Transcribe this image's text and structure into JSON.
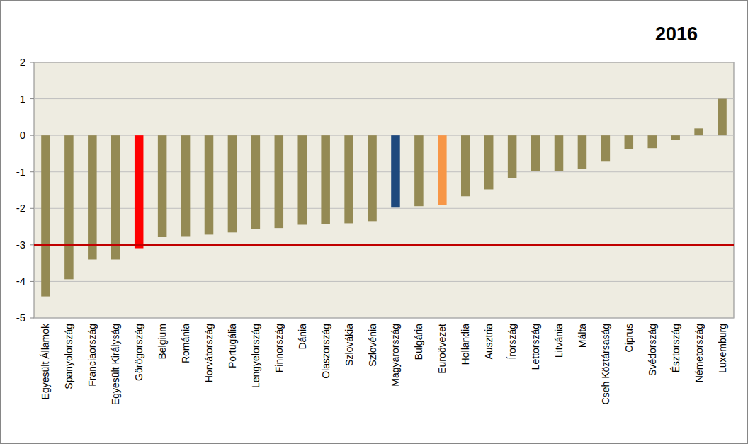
{
  "chart_data": {
    "type": "bar",
    "title": "2016",
    "categories": [
      "Egyesült Államok",
      "Spanyolország",
      "Franciaország",
      "Egyesült Királyság",
      "Görögország",
      "Belgium",
      "Románia",
      "Horvátország",
      "Portugália",
      "Lengyelország",
      "Finnország",
      "Dánia",
      "Olaszország",
      "Szlovákia",
      "Szlovénia",
      "Magyarország",
      "Bulgária",
      "Euroövezet",
      "Hollandia",
      "Ausztria",
      "Írország",
      "Lettország",
      "Litvánia",
      "Málta",
      "Cseh Köztársaság",
      "Ciprus",
      "Svédország",
      "Észtország",
      "Németország",
      "Luxemburg"
    ],
    "values": [
      -4.41,
      -3.94,
      -3.4,
      -3.4,
      -3.09,
      -2.78,
      -2.76,
      -2.72,
      -2.66,
      -2.56,
      -2.54,
      -2.45,
      -2.43,
      -2.41,
      -2.35,
      -1.98,
      -1.94,
      -1.9,
      -1.67,
      -1.48,
      -1.17,
      -0.97,
      -0.97,
      -0.91,
      -0.72,
      -0.37,
      -0.35,
      -0.12,
      0.19,
      1.0
    ],
    "colors": [
      "#948a54",
      "#948a54",
      "#948a54",
      "#948a54",
      "#ff0000",
      "#948a54",
      "#948a54",
      "#948a54",
      "#948a54",
      "#948a54",
      "#948a54",
      "#948a54",
      "#948a54",
      "#948a54",
      "#948a54",
      "#1f497d",
      "#948a54",
      "#f79646",
      "#948a54",
      "#948a54",
      "#948a54",
      "#948a54",
      "#948a54",
      "#948a54",
      "#948a54",
      "#948a54",
      "#948a54",
      "#948a54",
      "#948a54",
      "#948a54"
    ],
    "threshold": -3,
    "ylim": [
      -5,
      2
    ],
    "yticks": [
      -5,
      -4,
      -3,
      -2,
      -1,
      0,
      1,
      2
    ],
    "grid": true
  }
}
